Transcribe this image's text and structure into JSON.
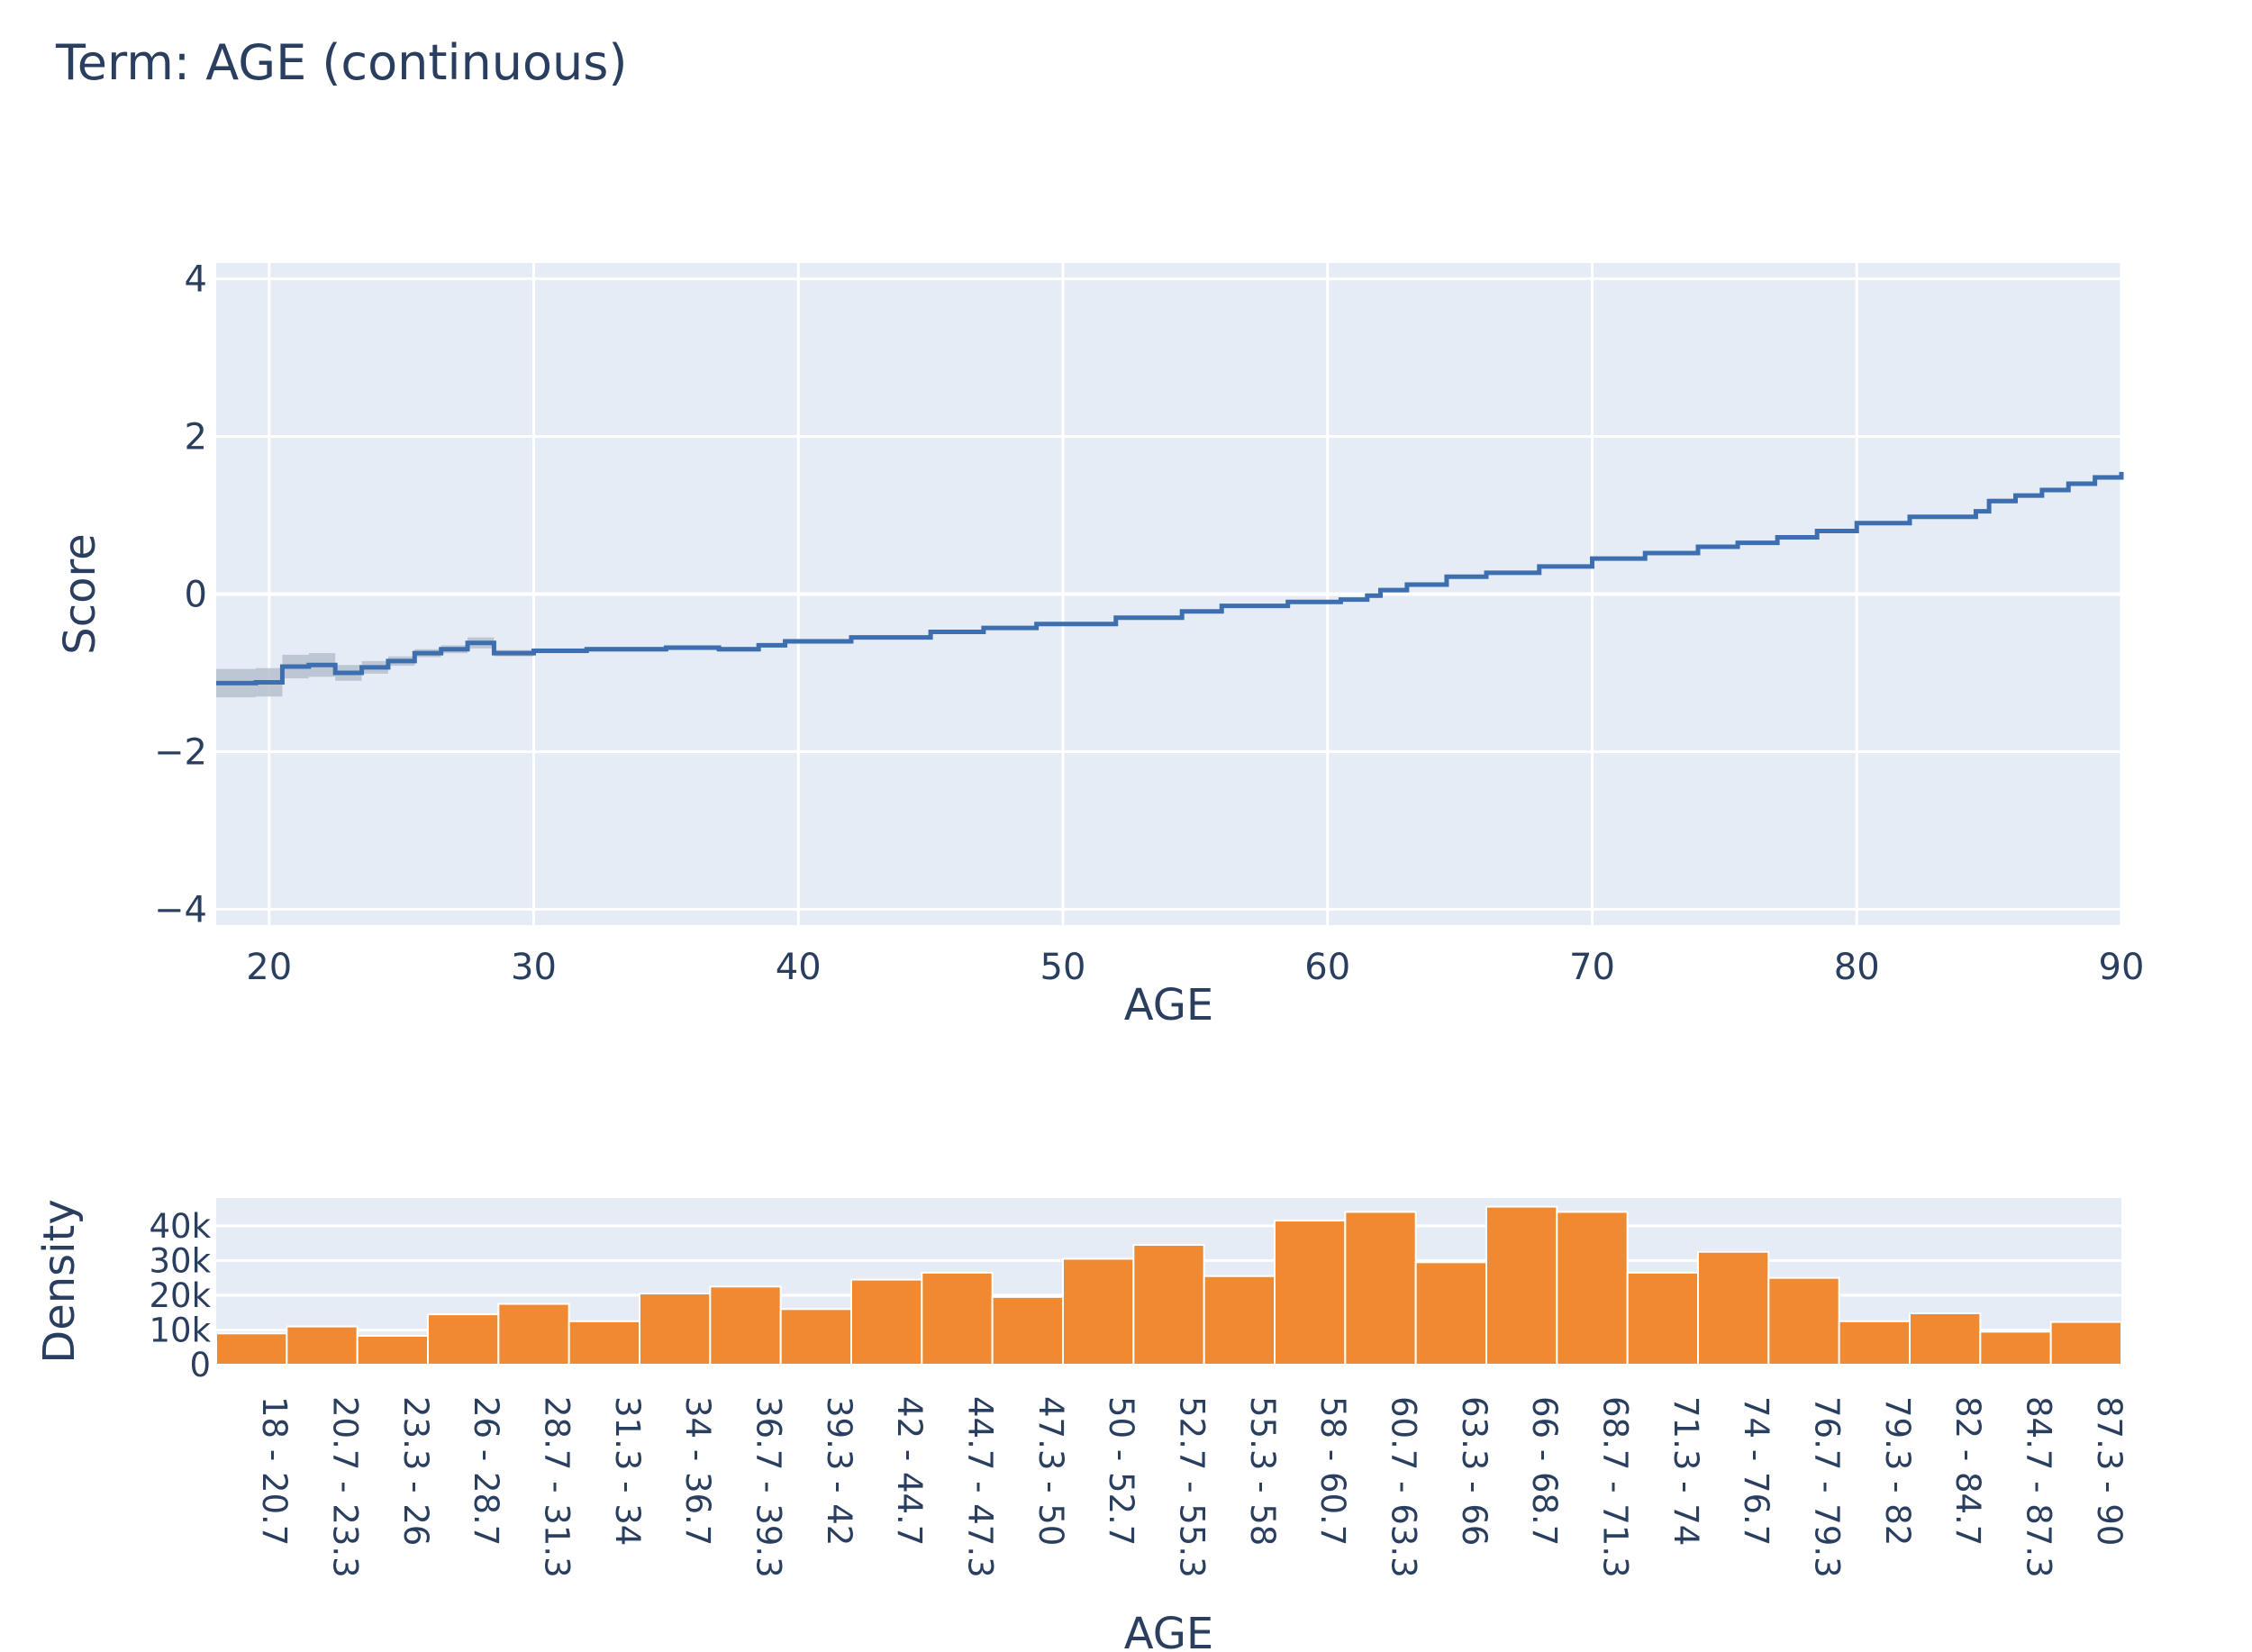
{
  "title": "Term: AGE (continuous)",
  "colors": {
    "plot_background": "#e5ecf6",
    "grid": "#ffffff",
    "score_line": "#3d6fb0",
    "score_band": "#b6bfcc",
    "density_bar": "#ef8a33",
    "text": "#2a3f5f"
  },
  "chart_data": [
    {
      "type": "line",
      "line_shape": "step",
      "xlabel": "AGE",
      "ylabel": "Score",
      "xlim": [
        18,
        90
      ],
      "ylim": [
        -4.2,
        4.2
      ],
      "xticks": [
        20,
        30,
        40,
        50,
        60,
        70,
        80,
        90
      ],
      "yticks": [
        4,
        2,
        0,
        -2,
        -4
      ],
      "ytick_labels": [
        "4",
        "2",
        "0",
        "−2",
        "−4"
      ],
      "grid": true,
      "x": [
        18,
        19.5,
        20.5,
        21.5,
        22.5,
        23.5,
        24.5,
        25.5,
        26.5,
        27.5,
        28.5,
        30,
        32,
        35,
        37,
        38.5,
        39.5,
        42,
        45,
        47,
        49,
        52,
        54.5,
        56,
        58.5,
        60.5,
        61.5,
        62,
        63,
        64.5,
        66,
        68,
        70,
        72,
        74,
        75.5,
        77,
        78.5,
        80,
        82,
        84.5,
        85,
        86,
        87,
        88,
        89,
        90
      ],
      "y": [
        -1.13,
        -1.12,
        -0.92,
        -0.9,
        -1.0,
        -0.93,
        -0.85,
        -0.75,
        -0.7,
        -0.62,
        -0.75,
        -0.72,
        -0.7,
        -0.68,
        -0.7,
        -0.65,
        -0.6,
        -0.55,
        -0.48,
        -0.43,
        -0.38,
        -0.3,
        -0.22,
        -0.15,
        -0.1,
        -0.07,
        -0.02,
        0.05,
        0.12,
        0.22,
        0.27,
        0.35,
        0.45,
        0.52,
        0.6,
        0.65,
        0.72,
        0.8,
        0.9,
        0.98,
        1.05,
        1.18,
        1.25,
        1.32,
        1.4,
        1.48,
        1.55
      ],
      "band_halfwidth": [
        0.18,
        0.18,
        0.15,
        0.15,
        0.1,
        0.08,
        0.06,
        0.05,
        0.05,
        0.07,
        0.04,
        0.03,
        0.03,
        0.03,
        0.03,
        0.03,
        0.03,
        0.02,
        0.02,
        0.02,
        0.02,
        0.02,
        0.02,
        0.02,
        0.02,
        0.02,
        0.03,
        0.03,
        0.03,
        0.02,
        0.02,
        0.02,
        0.02,
        0.02,
        0.02,
        0.02,
        0.02,
        0.02,
        0.02,
        0.02,
        0.02,
        0.03,
        0.03,
        0.03,
        0.03,
        0.03,
        0.03
      ]
    },
    {
      "type": "bar",
      "xlabel": "AGE",
      "ylabel": "Density",
      "ylim": [
        0,
        48000
      ],
      "yticks": [
        0,
        10000,
        20000,
        30000,
        40000
      ],
      "ytick_labels": [
        "0",
        "10k",
        "20k",
        "30k",
        "40k"
      ],
      "categories": [
        "18 - 20.7",
        "20.7 - 23.3",
        "23.3 - 26",
        "26 - 28.7",
        "28.7 - 31.3",
        "31.3 - 34",
        "34 - 36.7",
        "36.7 - 39.3",
        "39.3 - 42",
        "42 - 44.7",
        "44.7 - 47.3",
        "47.3 - 50",
        "50 - 52.7",
        "52.7 - 55.3",
        "55.3 - 58",
        "58 - 60.7",
        "60.7 - 63.3",
        "63.3 - 66",
        "66 - 68.7",
        "68.7 - 71.3",
        "71.3 - 74",
        "74 - 76.7",
        "76.7 - 79.3",
        "79.3 - 82",
        "82 - 84.7",
        "84.7 - 87.3",
        "87.3 - 90"
      ],
      "values": [
        9000,
        11000,
        8300,
        14500,
        17500,
        12500,
        20500,
        22500,
        16000,
        24500,
        26500,
        19500,
        30500,
        34500,
        25500,
        41500,
        44000,
        29500,
        45500,
        44000,
        26500,
        32500,
        25000,
        12500,
        14800,
        9500,
        12300
      ],
      "grid": true
    }
  ]
}
